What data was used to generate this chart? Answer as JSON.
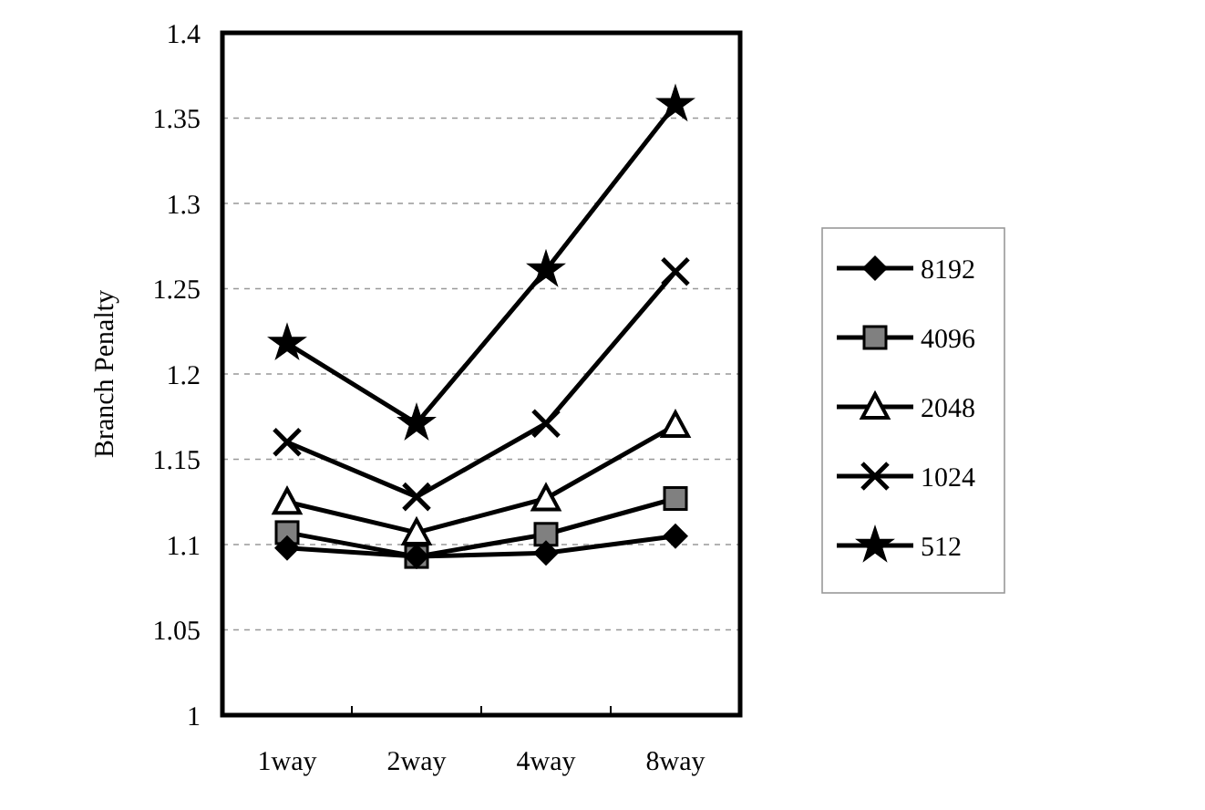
{
  "chart_data": {
    "type": "line",
    "ylabel": "Branch Penalty",
    "categories": [
      "1way",
      "2way",
      "4way",
      "8way"
    ],
    "ylim": [
      1,
      1.4
    ],
    "yticks": [
      1,
      1.05,
      1.1,
      1.15,
      1.2,
      1.25,
      1.3,
      1.35,
      1.4
    ],
    "grid": "y",
    "legend": "right",
    "series": [
      {
        "name": "8192",
        "color": "#000000",
        "marker": "diamond",
        "values": [
          1.098,
          1.093,
          1.095,
          1.105
        ]
      },
      {
        "name": "4096",
        "color": "#000000",
        "marker": "square",
        "values": [
          1.107,
          1.093,
          1.106,
          1.127
        ]
      },
      {
        "name": "2048",
        "color": "#000000",
        "marker": "triangle",
        "values": [
          1.125,
          1.107,
          1.127,
          1.17
        ]
      },
      {
        "name": "1024",
        "color": "#000000",
        "marker": "cross",
        "values": [
          1.16,
          1.128,
          1.171,
          1.26
        ]
      },
      {
        "name": "512",
        "color": "#000000",
        "marker": "star",
        "values": [
          1.218,
          1.171,
          1.261,
          1.358
        ]
      }
    ]
  }
}
